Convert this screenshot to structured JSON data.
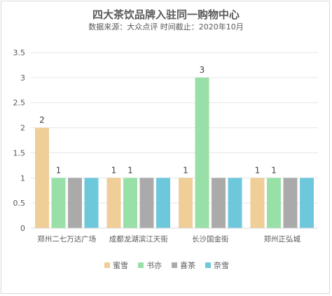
{
  "chart_data": {
    "type": "bar",
    "title": "四大茶饮品牌入驻同一购物中心",
    "subtitle": "数据来源：大众点评  时间截止：2020年10月",
    "categories": [
      "郑州二七万达广场",
      "成都龙湖滨江天街",
      "长沙国金街",
      "郑州正弘城"
    ],
    "series": [
      {
        "name": "蜜雪",
        "color": "#f0ce97",
        "values": [
          2,
          1,
          1,
          1
        ]
      },
      {
        "name": "书亦",
        "color": "#98e0a8",
        "values": [
          1,
          1,
          3,
          1
        ]
      },
      {
        "name": "喜茶",
        "color": "#aaaaaa",
        "values": [
          1,
          1,
          1,
          1
        ]
      },
      {
        "name": "奈雪",
        "color": "#6ec8dc",
        "values": [
          1,
          1,
          1,
          1
        ]
      }
    ],
    "data_labels": {
      "蜜雪": [
        "2",
        "1",
        "1",
        "1"
      ],
      "书亦": [
        "1",
        "1",
        "3",
        "1"
      ],
      "喜茶": [
        "",
        "",
        "",
        ""
      ],
      "奈雪": [
        "",
        "",
        "",
        ""
      ]
    },
    "yticks": [
      "0",
      "0.5",
      "1",
      "1.5",
      "2",
      "2.5",
      "3",
      "3.5"
    ],
    "ylim": [
      0,
      3.5
    ],
    "grid": true,
    "legend_position": "bottom"
  }
}
